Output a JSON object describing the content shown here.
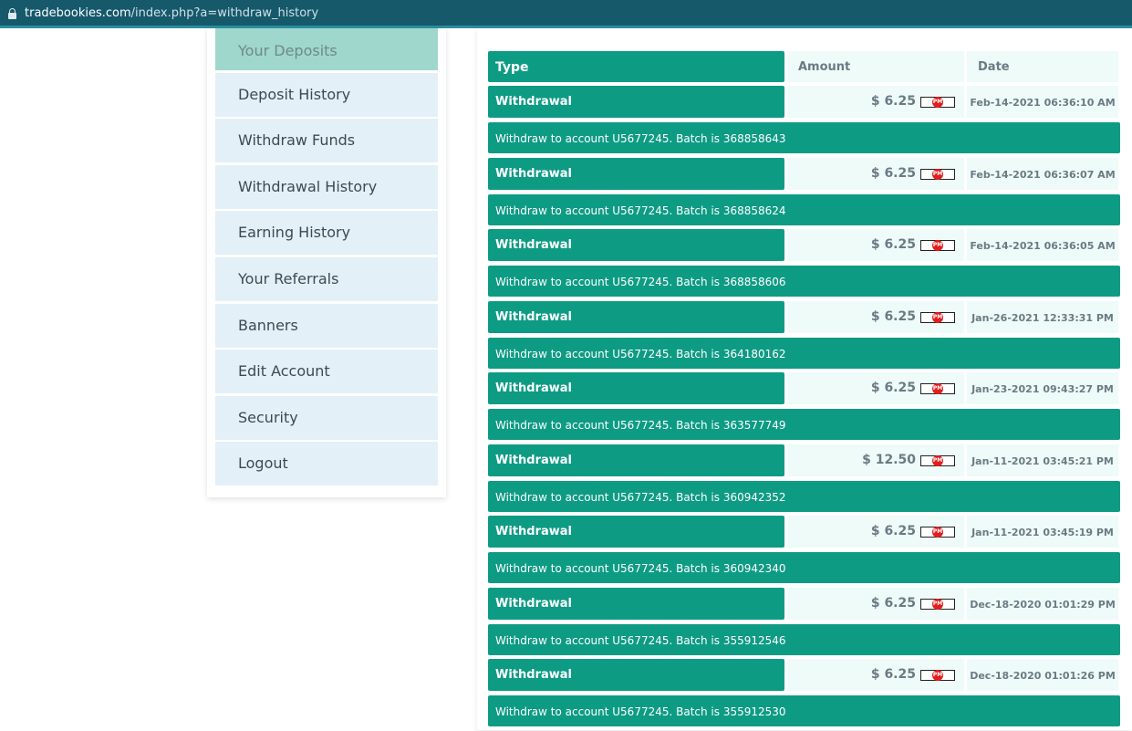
{
  "browser": {
    "url_host": "tradebookies.com",
    "url_path": "/index.php?a=withdraw_history"
  },
  "sidebar": {
    "items": [
      {
        "label": "Your Deposits",
        "active": true
      },
      {
        "label": "Deposit History"
      },
      {
        "label": "Withdraw Funds"
      },
      {
        "label": "Withdrawal History"
      },
      {
        "label": "Earning History"
      },
      {
        "label": "Your Referrals"
      },
      {
        "label": "Banners"
      },
      {
        "label": "Edit Account"
      },
      {
        "label": "Security"
      },
      {
        "label": "Logout"
      }
    ]
  },
  "table": {
    "headers": {
      "type": "Type",
      "amount": "Amount",
      "date": "Date"
    },
    "payment_badge": "PM",
    "rows": [
      {
        "type": "Withdrawal",
        "amount": "$ 6.25",
        "date": "Feb-14-2021 06:36:10 AM",
        "description": "Withdraw to account U5677245. Batch is 368858643"
      },
      {
        "type": "Withdrawal",
        "amount": "$ 6.25",
        "date": "Feb-14-2021 06:36:07 AM",
        "description": "Withdraw to account U5677245. Batch is 368858624"
      },
      {
        "type": "Withdrawal",
        "amount": "$ 6.25",
        "date": "Feb-14-2021 06:36:05 AM",
        "description": "Withdraw to account U5677245. Batch is 368858606"
      },
      {
        "type": "Withdrawal",
        "amount": "$ 6.25",
        "date": "Jan-26-2021 12:33:31 PM",
        "description": "Withdraw to account U5677245. Batch is 364180162"
      },
      {
        "type": "Withdrawal",
        "amount": "$ 6.25",
        "date": "Jan-23-2021 09:43:27 PM",
        "description": "Withdraw to account U5677245. Batch is 363577749"
      },
      {
        "type": "Withdrawal",
        "amount": "$ 12.50",
        "date": "Jan-11-2021 03:45:21 PM",
        "description": "Withdraw to account U5677245. Batch is 360942352"
      },
      {
        "type": "Withdrawal",
        "amount": "$ 6.25",
        "date": "Jan-11-2021 03:45:19 PM",
        "description": "Withdraw to account U5677245. Batch is 360942340"
      },
      {
        "type": "Withdrawal",
        "amount": "$ 6.25",
        "date": "Dec-18-2020 01:01:29 PM",
        "description": "Withdraw to account U5677245. Batch is 355912546"
      },
      {
        "type": "Withdrawal",
        "amount": "$ 6.25",
        "date": "Dec-18-2020 01:01:26 PM",
        "description": "Withdraw to account U5677245. Batch is 355912530"
      }
    ]
  },
  "colors": {
    "accent_green": "#0e9b84",
    "active_menu": "#9fd7cd",
    "menu_bg": "#e4f0f7",
    "cell_bg": "#eefbf8",
    "pm_red": "#e31d1d"
  }
}
